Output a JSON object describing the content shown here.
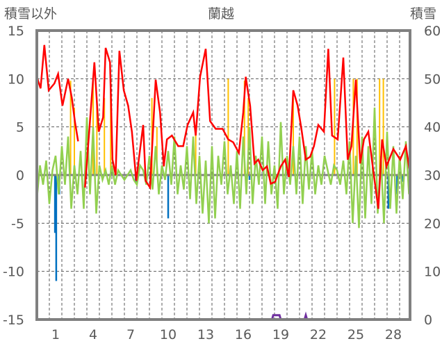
{
  "chart_data": {
    "type": "line",
    "title": "蘭越",
    "ylabel_left": "積雪以外",
    "ylabel_right": "積雪",
    "xticks": [
      1,
      4,
      7,
      10,
      13,
      16,
      19,
      22,
      25,
      28
    ],
    "xlim": [
      -0.5,
      29.3
    ],
    "ylim_left": [
      -15,
      15
    ],
    "yticks_left": [
      15,
      10,
      5,
      0,
      -5,
      -10,
      -15
    ],
    "ylim_right": [
      0,
      60
    ],
    "yticks_right": [
      60,
      50,
      40,
      30,
      20,
      10,
      0
    ],
    "grid": true,
    "colors": {
      "red": "#ff0000",
      "green": "#92d050",
      "orange": "#ffc000",
      "blue": "#0070c0",
      "purple": "#7030a0",
      "axis": "#808080"
    },
    "red_series": [
      [
        -0.45,
        10
      ],
      [
        -0.2,
        9
      ],
      [
        0.1,
        13.5
      ],
      [
        0.45,
        8.8
      ],
      [
        0.9,
        9.5
      ],
      [
        1.2,
        10.5
      ],
      [
        1.55,
        7.2
      ],
      [
        2,
        10
      ],
      [
        2.3,
        8
      ],
      [
        2.55,
        5.5
      ],
      [
        2.8,
        3.5
      ],
      null,
      [
        3.35,
        -1.3
      ],
      [
        3.8,
        6.5
      ],
      [
        4.1,
        11.7
      ],
      [
        4.45,
        4.5
      ],
      [
        4.8,
        6
      ],
      [
        5,
        13.2
      ],
      [
        5.35,
        11.7
      ],
      [
        5.55,
        1.6
      ],
      [
        5.8,
        0
      ],
      [
        6.1,
        12.9
      ],
      [
        6.45,
        8.8
      ],
      [
        6.8,
        7.2
      ],
      [
        7.1,
        4.5
      ],
      [
        7.45,
        -0.6
      ],
      [
        7.65,
        1.6
      ],
      [
        8,
        5.2
      ],
      [
        8.2,
        -0.6
      ],
      [
        8.55,
        -1.3
      ],
      [
        9,
        9.9
      ],
      [
        9.35,
        6.5
      ],
      [
        9.65,
        0.9
      ],
      [
        9.9,
        3.7
      ],
      [
        10.3,
        4.1
      ],
      [
        10.8,
        3
      ],
      [
        11.2,
        3
      ],
      [
        11.55,
        5.2
      ],
      [
        12,
        6.5
      ],
      [
        12.2,
        4.1
      ],
      [
        12.55,
        10.2
      ],
      [
        13,
        13.1
      ],
      [
        13.35,
        5.6
      ],
      [
        13.8,
        4.8
      ],
      [
        14.35,
        4.8
      ],
      [
        14.8,
        3.7
      ],
      [
        15.2,
        3.4
      ],
      [
        15.65,
        2.3
      ],
      [
        16,
        6.5
      ],
      [
        16.2,
        10.2
      ],
      [
        16.55,
        7.2
      ],
      [
        16.9,
        1.2
      ],
      [
        17.2,
        1.6
      ],
      [
        17.55,
        0.5
      ],
      [
        17.9,
        0.9
      ],
      [
        18.2,
        -0.9
      ],
      [
        18.55,
        -0.7
      ],
      [
        19,
        0.9
      ],
      [
        19.35,
        1.6
      ],
      [
        19.65,
        -0.2
      ],
      [
        20,
        8.8
      ],
      [
        20.35,
        7.2
      ],
      [
        20.65,
        4.8
      ],
      [
        21,
        1.6
      ],
      [
        21.35,
        1.9
      ],
      [
        21.65,
        3
      ],
      [
        22,
        5.2
      ],
      [
        22.45,
        4.5
      ],
      [
        22.8,
        13.1
      ],
      [
        23.1,
        4.1
      ],
      [
        23.55,
        3.7
      ],
      [
        24,
        12.2
      ],
      [
        24.35,
        1.6
      ],
      [
        24.65,
        3
      ],
      [
        25,
        9.9
      ],
      [
        25.35,
        1.2
      ],
      [
        25.65,
        3.7
      ],
      [
        26,
        4.5
      ],
      [
        26.35,
        0.9
      ],
      [
        26.8,
        -3.5
      ],
      [
        27.1,
        3.7
      ],
      [
        27.45,
        0.9
      ],
      [
        28,
        2.7
      ],
      [
        28.55,
        1.6
      ],
      [
        29,
        3
      ],
      [
        29.3,
        0.5
      ]
    ],
    "green_step": 0.25,
    "green_start": -0.5,
    "green_series": [
      -2.5,
      1,
      -1,
      1.5,
      -3,
      0.5,
      2,
      -2,
      3,
      -1,
      4,
      -3.5,
      1,
      -2,
      2.5,
      -3.5,
      6,
      -2,
      5,
      -4,
      1,
      -0.5,
      0.5,
      -1,
      1,
      -1,
      0.5,
      0,
      -0.5,
      0,
      0.5,
      -0.5,
      -1,
      1,
      0.5,
      -1,
      2,
      -1.5,
      3,
      -2,
      1,
      -0.5,
      2.5,
      -1,
      4,
      -2,
      1,
      -1.5,
      3,
      -2.5,
      4,
      -3,
      2,
      -4,
      1.5,
      -5,
      3,
      -4.5,
      2,
      -1,
      3.5,
      -2,
      1,
      -3,
      2.5,
      -3.5,
      4,
      -2,
      5,
      -3,
      2,
      -1,
      4,
      -3,
      3.5,
      -2,
      1,
      -3.5,
      5.5,
      -2,
      2,
      -1,
      3,
      -2,
      4,
      -3,
      3,
      -1.5,
      2.5,
      -2,
      1,
      -1,
      2,
      0.5,
      -1,
      1,
      0.5,
      -1,
      1.5,
      -2,
      3.5,
      -5,
      2,
      -5.5,
      4,
      -4.5,
      3,
      -3,
      7,
      -4,
      2,
      -5,
      4.5,
      -3.5,
      3,
      -4,
      2,
      -2.5,
      3.5,
      -2,
      1,
      0.5,
      -1.5,
      1.5,
      -1,
      2.5,
      -2,
      1,
      -1.5,
      2,
      -0.5,
      1,
      -1,
      0.5,
      -1.5,
      2,
      -1,
      3,
      -2,
      1.5,
      -4,
      4,
      -5,
      2,
      -5.5,
      3,
      -4,
      6,
      -5,
      2,
      -3
    ],
    "orange_bars": [
      [
        2.2,
        9.8
      ],
      [
        2.5,
        7
      ],
      [
        4,
        10
      ],
      [
        4.3,
        8
      ],
      [
        4.9,
        8
      ],
      [
        5.4,
        10
      ],
      [
        8.7,
        8
      ],
      [
        9.1,
        5
      ],
      [
        12.2,
        5
      ],
      [
        14.8,
        10
      ],
      [
        16.1,
        9.8
      ],
      [
        16.4,
        8
      ],
      [
        20,
        8
      ],
      [
        23.3,
        10
      ],
      [
        24.8,
        10
      ],
      [
        25.1,
        10
      ],
      [
        26.9,
        10
      ],
      [
        27.2,
        10
      ]
    ],
    "blue_bars": [
      [
        1.05,
        -11
      ],
      [
        0.95,
        -6
      ],
      [
        1.3,
        -2
      ],
      [
        7.4,
        -0.8
      ],
      [
        10,
        -4.5
      ],
      [
        16.5,
        -0.5
      ],
      [
        27.6,
        -3.5
      ],
      [
        28.3,
        -2
      ],
      [
        28.7,
        -0.7
      ]
    ],
    "purple_series": [
      [
        -0.5,
        0
      ],
      [
        18.3,
        0
      ],
      [
        18.4,
        0.9
      ],
      [
        18.9,
        0.9
      ],
      [
        19,
        0
      ],
      [
        20.9,
        0
      ],
      [
        21,
        0.9
      ],
      [
        21.1,
        0
      ],
      [
        29.3,
        0
      ]
    ]
  }
}
